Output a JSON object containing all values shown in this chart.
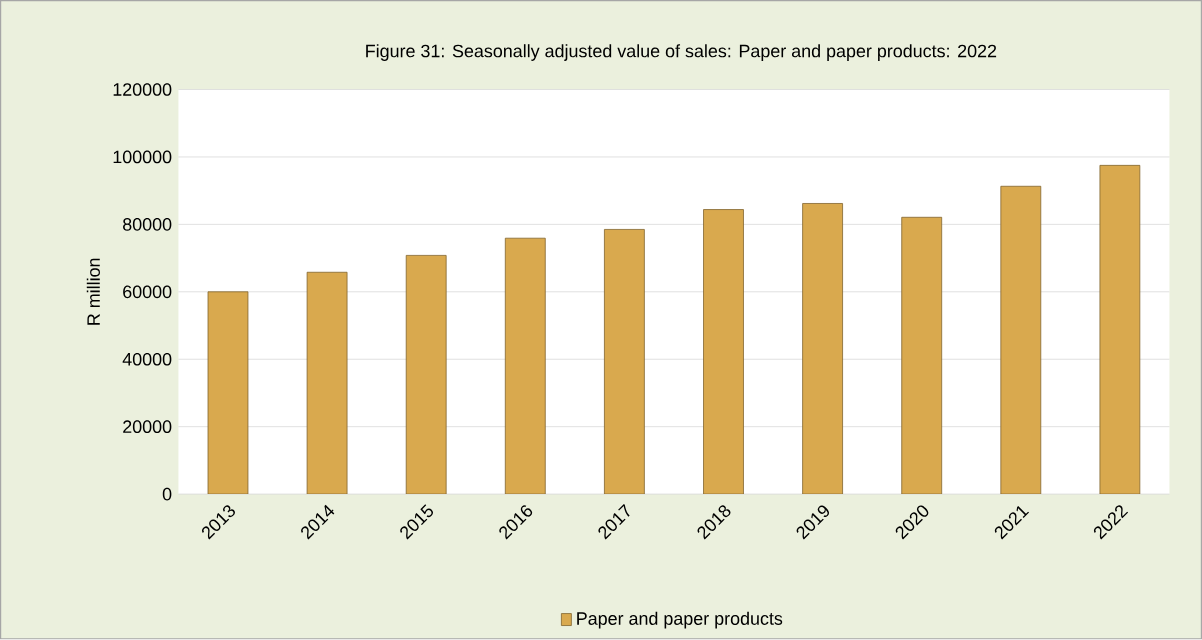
{
  "chart_data": {
    "type": "bar",
    "title": "Figure 31: Seasonally adjusted value of sales: Paper and paper products: 2022",
    "categories": [
      "2013",
      "2014",
      "2015",
      "2016",
      "2017",
      "2018",
      "2019",
      "2020",
      "2021",
      "2022"
    ],
    "series": [
      {
        "name": "Paper and paper products",
        "color": "#d9a94e",
        "values": [
          60000,
          65800,
          70800,
          75900,
          78500,
          84400,
          86200,
          82100,
          91300,
          97500
        ]
      }
    ],
    "ylabel": "R million",
    "ylim": [
      0,
      120000
    ],
    "yticks": [
      0,
      20000,
      40000,
      60000,
      80000,
      100000,
      120000
    ],
    "grid": "y",
    "legend": "bottom"
  }
}
